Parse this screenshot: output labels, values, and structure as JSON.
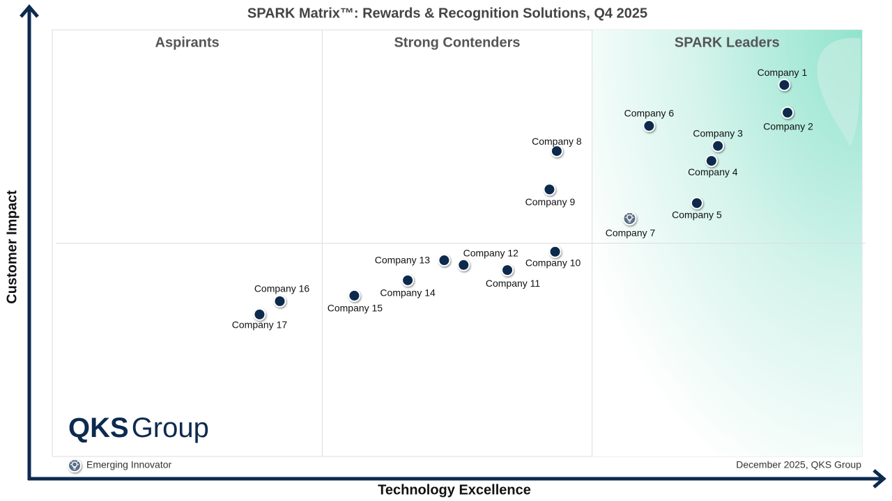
{
  "chart_data": {
    "type": "scatter",
    "title": "SPARK Matrix™: Rewards & Recognition Solutions, Q4 2025",
    "xlabel": "Technology Excellence",
    "ylabel": "Customer Impact",
    "regions": [
      "Aspirants",
      "Strong Contenders",
      "SPARK Leaders"
    ],
    "xlim": [
      0,
      100
    ],
    "ylim": [
      0,
      100
    ],
    "color": "#0b2a4e",
    "emerging_color": "#5b6f86",
    "points": [
      {
        "label": "Company 1",
        "x": 90.4,
        "y": 87.1,
        "emerging": false
      },
      {
        "label": "Company 2",
        "x": 90.8,
        "y": 80.6,
        "emerging": false
      },
      {
        "label": "Company 3",
        "x": 82.2,
        "y": 72.8,
        "emerging": false
      },
      {
        "label": "Company 4",
        "x": 81.4,
        "y": 69.3,
        "emerging": false
      },
      {
        "label": "Company 5",
        "x": 79.6,
        "y": 59.4,
        "emerging": false
      },
      {
        "label": "Company 6",
        "x": 73.7,
        "y": 77.5,
        "emerging": false
      },
      {
        "label": "Company 7",
        "x": 71.3,
        "y": 55.8,
        "emerging": true
      },
      {
        "label": "Company 8",
        "x": 62.3,
        "y": 71.6,
        "emerging": false
      },
      {
        "label": "Company 9",
        "x": 61.4,
        "y": 62.6,
        "emerging": false
      },
      {
        "label": "Company 10",
        "x": 62.1,
        "y": 48.0,
        "emerging": false
      },
      {
        "label": "Company 11",
        "x": 56.2,
        "y": 43.7,
        "emerging": false
      },
      {
        "label": "Company 12",
        "x": 50.8,
        "y": 44.9,
        "emerging": false
      },
      {
        "label": "Company 13",
        "x": 48.4,
        "y": 46.0,
        "emerging": false
      },
      {
        "label": "Company 14",
        "x": 43.9,
        "y": 41.3,
        "emerging": false
      },
      {
        "label": "Company 15",
        "x": 37.3,
        "y": 37.7,
        "emerging": false
      },
      {
        "label": "Company 16",
        "x": 28.1,
        "y": 36.4,
        "emerging": false
      },
      {
        "label": "Company 17",
        "x": 25.6,
        "y": 33.3,
        "emerging": false
      }
    ],
    "legend": "Emerging Innovator",
    "footer": "December 2025, QKS Group",
    "logo": {
      "bold": "QKS",
      "light": "Group"
    }
  }
}
